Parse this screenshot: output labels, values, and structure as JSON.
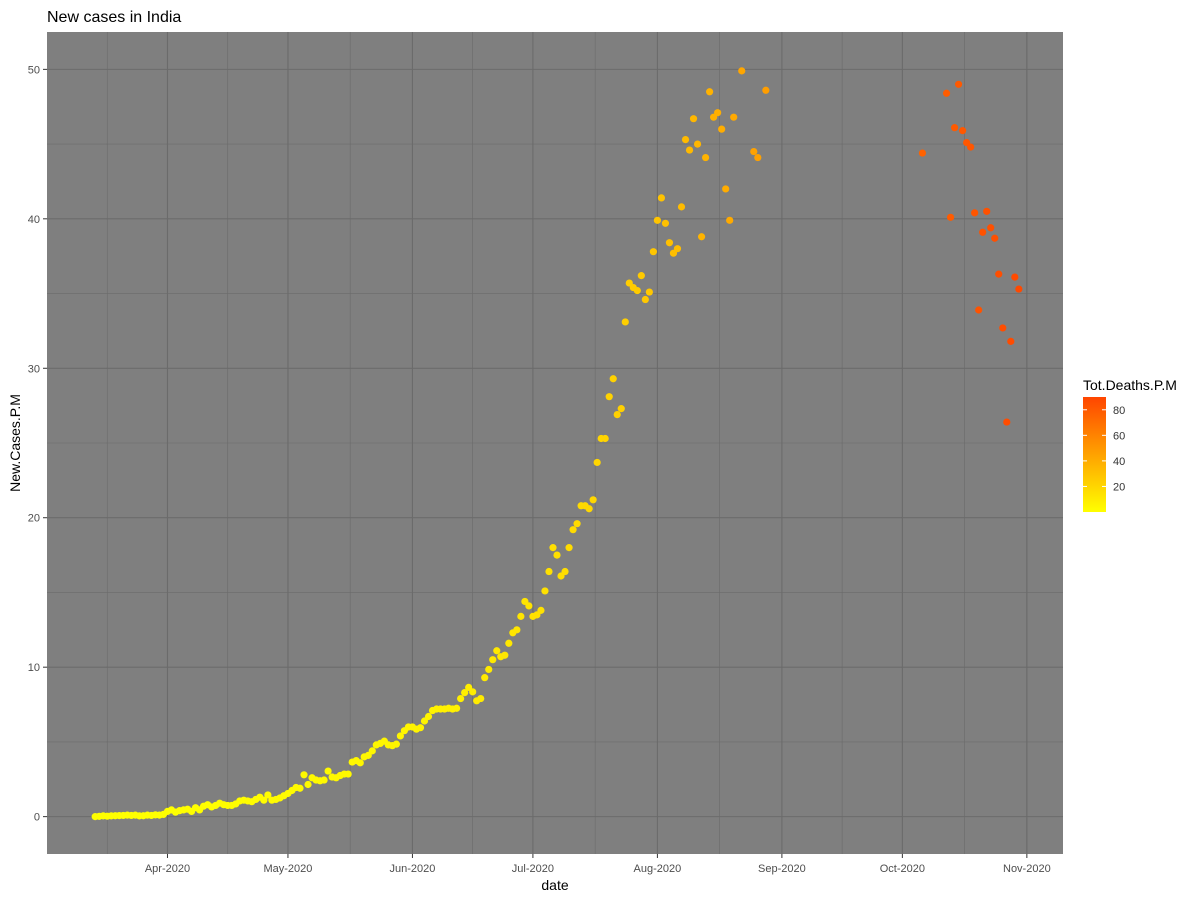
{
  "chart_data": {
    "type": "scatter",
    "title": "New cases in India",
    "xlabel": "date",
    "ylabel": "New.Cases.P.M",
    "x_ticks": [
      "Apr-2020",
      "May-2020",
      "Jun-2020",
      "Jul-2020",
      "Aug-2020",
      "Sep-2020",
      "Oct-2020",
      "Nov-2020"
    ],
    "x_tick_dates": [
      "2020-04-01",
      "2020-05-01",
      "2020-06-01",
      "2020-07-01",
      "2020-08-01",
      "2020-09-01",
      "2020-10-01",
      "2020-11-01"
    ],
    "y_ticks": [
      0,
      10,
      20,
      30,
      40,
      50
    ],
    "xlim": [
      "2020-03-02",
      "2020-11-10"
    ],
    "ylim": [
      -2.5,
      52.5
    ],
    "panel_background": "#7f7f7f",
    "grid": true,
    "legend": {
      "title": "Tot.Deaths.P.M",
      "position": "right",
      "ticks": [
        20,
        40,
        60,
        80
      ],
      "range": [
        0,
        90
      ],
      "low_color": "#ffff00",
      "high_color": "#ff4500"
    },
    "points": [
      {
        "date": "2020-03-14",
        "y": 0.0,
        "c": 0.01
      },
      {
        "date": "2020-03-15",
        "y": 0.02,
        "c": 0.01
      },
      {
        "date": "2020-03-16",
        "y": 0.05,
        "c": 0.01
      },
      {
        "date": "2020-03-17",
        "y": 0.03,
        "c": 0.01
      },
      {
        "date": "2020-03-18",
        "y": 0.05,
        "c": 0.01
      },
      {
        "date": "2020-03-19",
        "y": 0.06,
        "c": 0.02
      },
      {
        "date": "2020-03-20",
        "y": 0.07,
        "c": 0.02
      },
      {
        "date": "2020-03-21",
        "y": 0.08,
        "c": 0.02
      },
      {
        "date": "2020-03-22",
        "y": 0.1,
        "c": 0.03
      },
      {
        "date": "2020-03-23",
        "y": 0.08,
        "c": 0.03
      },
      {
        "date": "2020-03-24",
        "y": 0.1,
        "c": 0.04
      },
      {
        "date": "2020-03-25",
        "y": 0.05,
        "c": 0.05
      },
      {
        "date": "2020-03-26",
        "y": 0.06,
        "c": 0.06
      },
      {
        "date": "2020-03-27",
        "y": 0.1,
        "c": 0.07
      },
      {
        "date": "2020-03-28",
        "y": 0.08,
        "c": 0.08
      },
      {
        "date": "2020-03-29",
        "y": 0.12,
        "c": 0.09
      },
      {
        "date": "2020-03-30",
        "y": 0.1,
        "c": 0.1
      },
      {
        "date": "2020-03-31",
        "y": 0.15,
        "c": 0.12
      },
      {
        "date": "2020-04-01",
        "y": 0.35,
        "c": 0.15
      },
      {
        "date": "2020-04-02",
        "y": 0.45,
        "c": 0.18
      },
      {
        "date": "2020-04-03",
        "y": 0.3,
        "c": 0.2
      },
      {
        "date": "2020-04-04",
        "y": 0.4,
        "c": 0.25
      },
      {
        "date": "2020-04-05",
        "y": 0.45,
        "c": 0.3
      },
      {
        "date": "2020-04-06",
        "y": 0.5,
        "c": 0.35
      },
      {
        "date": "2020-04-07",
        "y": 0.35,
        "c": 0.4
      },
      {
        "date": "2020-04-08",
        "y": 0.6,
        "c": 0.45
      },
      {
        "date": "2020-04-09",
        "y": 0.45,
        "c": 0.5
      },
      {
        "date": "2020-04-10",
        "y": 0.7,
        "c": 0.55
      },
      {
        "date": "2020-04-11",
        "y": 0.8,
        "c": 0.6
      },
      {
        "date": "2020-04-12",
        "y": 0.65,
        "c": 0.65
      },
      {
        "date": "2020-04-13",
        "y": 0.75,
        "c": 0.7
      },
      {
        "date": "2020-04-14",
        "y": 0.9,
        "c": 0.8
      },
      {
        "date": "2020-04-15",
        "y": 0.8,
        "c": 0.85
      },
      {
        "date": "2020-04-16",
        "y": 0.75,
        "c": 0.9
      },
      {
        "date": "2020-04-17",
        "y": 0.75,
        "c": 1.0
      },
      {
        "date": "2020-04-18",
        "y": 0.85,
        "c": 1.05
      },
      {
        "date": "2020-04-19",
        "y": 1.05,
        "c": 1.1
      },
      {
        "date": "2020-04-20",
        "y": 1.1,
        "c": 1.2
      },
      {
        "date": "2020-04-21",
        "y": 1.05,
        "c": 1.3
      },
      {
        "date": "2020-04-22",
        "y": 1.0,
        "c": 1.35
      },
      {
        "date": "2020-04-23",
        "y": 1.15,
        "c": 1.4
      },
      {
        "date": "2020-04-24",
        "y": 1.3,
        "c": 1.5
      },
      {
        "date": "2020-04-25",
        "y": 1.1,
        "c": 1.55
      },
      {
        "date": "2020-04-26",
        "y": 1.45,
        "c": 1.6
      },
      {
        "date": "2020-04-27",
        "y": 1.1,
        "c": 1.7
      },
      {
        "date": "2020-04-28",
        "y": 1.15,
        "c": 1.8
      },
      {
        "date": "2020-04-29",
        "y": 1.25,
        "c": 1.85
      },
      {
        "date": "2020-04-30",
        "y": 1.4,
        "c": 1.95
      },
      {
        "date": "2020-05-01",
        "y": 1.55,
        "c": 2.0
      },
      {
        "date": "2020-05-02",
        "y": 1.75,
        "c": 2.1
      },
      {
        "date": "2020-05-03",
        "y": 1.95,
        "c": 2.2
      },
      {
        "date": "2020-05-04",
        "y": 1.9,
        "c": 2.3
      },
      {
        "date": "2020-05-05",
        "y": 2.8,
        "c": 2.4
      },
      {
        "date": "2020-05-06",
        "y": 2.15,
        "c": 2.5
      },
      {
        "date": "2020-05-07",
        "y": 2.6,
        "c": 2.6
      },
      {
        "date": "2020-05-08",
        "y": 2.45,
        "c": 2.7
      },
      {
        "date": "2020-05-09",
        "y": 2.4,
        "c": 2.8
      },
      {
        "date": "2020-05-10",
        "y": 2.45,
        "c": 2.9
      },
      {
        "date": "2020-05-11",
        "y": 3.05,
        "c": 3.0
      },
      {
        "date": "2020-05-12",
        "y": 2.65,
        "c": 3.1
      },
      {
        "date": "2020-05-13",
        "y": 2.6,
        "c": 3.2
      },
      {
        "date": "2020-05-14",
        "y": 2.75,
        "c": 3.3
      },
      {
        "date": "2020-05-15",
        "y": 2.85,
        "c": 3.4
      },
      {
        "date": "2020-05-16",
        "y": 2.85,
        "c": 3.5
      },
      {
        "date": "2020-05-17",
        "y": 3.65,
        "c": 3.6
      },
      {
        "date": "2020-05-18",
        "y": 3.75,
        "c": 3.7
      },
      {
        "date": "2020-05-19",
        "y": 3.6,
        "c": 3.8
      },
      {
        "date": "2020-05-20",
        "y": 4.0,
        "c": 3.9
      },
      {
        "date": "2020-05-21",
        "y": 4.1,
        "c": 4.0
      },
      {
        "date": "2020-05-22",
        "y": 4.4,
        "c": 4.1
      },
      {
        "date": "2020-05-23",
        "y": 4.8,
        "c": 4.2
      },
      {
        "date": "2020-05-24",
        "y": 4.9,
        "c": 4.3
      },
      {
        "date": "2020-05-25",
        "y": 5.05,
        "c": 4.4
      },
      {
        "date": "2020-05-26",
        "y": 4.8,
        "c": 4.5
      },
      {
        "date": "2020-05-27",
        "y": 4.75,
        "c": 4.6
      },
      {
        "date": "2020-05-28",
        "y": 4.85,
        "c": 4.8
      },
      {
        "date": "2020-05-29",
        "y": 5.4,
        "c": 4.9
      },
      {
        "date": "2020-05-30",
        "y": 5.75,
        "c": 5.0
      },
      {
        "date": "2020-05-31",
        "y": 6.0,
        "c": 5.2
      },
      {
        "date": "2020-06-01",
        "y": 6.0,
        "c": 5.3
      },
      {
        "date": "2020-06-02",
        "y": 5.85,
        "c": 5.5
      },
      {
        "date": "2020-06-03",
        "y": 5.95,
        "c": 5.7
      },
      {
        "date": "2020-06-04",
        "y": 6.4,
        "c": 5.9
      },
      {
        "date": "2020-06-05",
        "y": 6.7,
        "c": 6.0
      },
      {
        "date": "2020-06-06",
        "y": 7.1,
        "c": 6.2
      },
      {
        "date": "2020-06-07",
        "y": 7.2,
        "c": 6.4
      },
      {
        "date": "2020-06-08",
        "y": 7.2,
        "c": 6.6
      },
      {
        "date": "2020-06-09",
        "y": 7.2,
        "c": 6.8
      },
      {
        "date": "2020-06-10",
        "y": 7.25,
        "c": 7.0
      },
      {
        "date": "2020-06-11",
        "y": 7.2,
        "c": 7.2
      },
      {
        "date": "2020-06-12",
        "y": 7.25,
        "c": 7.5
      },
      {
        "date": "2020-06-13",
        "y": 7.9,
        "c": 7.8
      },
      {
        "date": "2020-06-14",
        "y": 8.3,
        "c": 8.0
      },
      {
        "date": "2020-06-15",
        "y": 8.65,
        "c": 8.3
      },
      {
        "date": "2020-06-16",
        "y": 8.35,
        "c": 8.6
      },
      {
        "date": "2020-06-17",
        "y": 7.75,
        "c": 9.5
      },
      {
        "date": "2020-06-18",
        "y": 7.9,
        "c": 9.8
      },
      {
        "date": "2020-06-19",
        "y": 9.3,
        "c": 10.0
      },
      {
        "date": "2020-06-20",
        "y": 9.85,
        "c": 10.3
      },
      {
        "date": "2020-06-21",
        "y": 10.5,
        "c": 10.6
      },
      {
        "date": "2020-06-22",
        "y": 11.1,
        "c": 10.9
      },
      {
        "date": "2020-06-23",
        "y": 10.7,
        "c": 11.2
      },
      {
        "date": "2020-06-24",
        "y": 10.8,
        "c": 11.5
      },
      {
        "date": "2020-06-25",
        "y": 11.6,
        "c": 11.8
      },
      {
        "date": "2020-06-26",
        "y": 12.3,
        "c": 12.1
      },
      {
        "date": "2020-06-27",
        "y": 12.5,
        "c": 12.4
      },
      {
        "date": "2020-06-28",
        "y": 13.4,
        "c": 12.7
      },
      {
        "date": "2020-06-29",
        "y": 14.4,
        "c": 13.0
      },
      {
        "date": "2020-06-30",
        "y": 14.1,
        "c": 13.3
      },
      {
        "date": "2020-07-01",
        "y": 13.4,
        "c": 13.6
      },
      {
        "date": "2020-07-02",
        "y": 13.5,
        "c": 14.0
      },
      {
        "date": "2020-07-03",
        "y": 13.8,
        "c": 14.3
      },
      {
        "date": "2020-07-04",
        "y": 15.1,
        "c": 14.6
      },
      {
        "date": "2020-07-05",
        "y": 16.4,
        "c": 14.9
      },
      {
        "date": "2020-07-06",
        "y": 18.0,
        "c": 15.3
      },
      {
        "date": "2020-07-07",
        "y": 17.5,
        "c": 15.7
      },
      {
        "date": "2020-07-08",
        "y": 16.1,
        "c": 16.1
      },
      {
        "date": "2020-07-09",
        "y": 16.4,
        "c": 16.5
      },
      {
        "date": "2020-07-10",
        "y": 18.0,
        "c": 16.9
      },
      {
        "date": "2020-07-11",
        "y": 19.2,
        "c": 17.3
      },
      {
        "date": "2020-07-12",
        "y": 19.6,
        "c": 17.7
      },
      {
        "date": "2020-07-13",
        "y": 20.8,
        "c": 18.1
      },
      {
        "date": "2020-07-14",
        "y": 20.8,
        "c": 18.5
      },
      {
        "date": "2020-07-15",
        "y": 20.6,
        "c": 18.9
      },
      {
        "date": "2020-07-16",
        "y": 21.2,
        "c": 19.3
      },
      {
        "date": "2020-07-17",
        "y": 23.7,
        "c": 19.7
      },
      {
        "date": "2020-07-18",
        "y": 25.3,
        "c": 20.2
      },
      {
        "date": "2020-07-19",
        "y": 25.3,
        "c": 20.7
      },
      {
        "date": "2020-07-20",
        "y": 28.1,
        "c": 21.2
      },
      {
        "date": "2020-07-21",
        "y": 29.3,
        "c": 21.7
      },
      {
        "date": "2020-07-22",
        "y": 26.9,
        "c": 22.2
      },
      {
        "date": "2020-07-23",
        "y": 27.3,
        "c": 22.8
      },
      {
        "date": "2020-07-24",
        "y": 33.1,
        "c": 23.4
      },
      {
        "date": "2020-07-25",
        "y": 35.7,
        "c": 24.0
      },
      {
        "date": "2020-07-26",
        "y": 35.4,
        "c": 24.6
      },
      {
        "date": "2020-07-27",
        "y": 35.2,
        "c": 25.2
      },
      {
        "date": "2020-07-28",
        "y": 36.2,
        "c": 25.8
      },
      {
        "date": "2020-07-29",
        "y": 34.6,
        "c": 26.4
      },
      {
        "date": "2020-07-30",
        "y": 35.1,
        "c": 27.0
      },
      {
        "date": "2020-07-31",
        "y": 37.8,
        "c": 27.7
      },
      {
        "date": "2020-08-01",
        "y": 39.9,
        "c": 28.4
      },
      {
        "date": "2020-08-02",
        "y": 41.4,
        "c": 29.1
      },
      {
        "date": "2020-08-03",
        "y": 39.7,
        "c": 29.8
      },
      {
        "date": "2020-08-04",
        "y": 38.4,
        "c": 30.5
      },
      {
        "date": "2020-08-05",
        "y": 37.7,
        "c": 31.2
      },
      {
        "date": "2020-08-06",
        "y": 38.0,
        "c": 31.9
      },
      {
        "date": "2020-08-07",
        "y": 40.8,
        "c": 32.6
      },
      {
        "date": "2020-08-08",
        "y": 45.3,
        "c": 33.3
      },
      {
        "date": "2020-08-09",
        "y": 44.6,
        "c": 34.0
      },
      {
        "date": "2020-08-10",
        "y": 46.7,
        "c": 34.7
      },
      {
        "date": "2020-08-11",
        "y": 45.0,
        "c": 35.4
      },
      {
        "date": "2020-08-12",
        "y": 38.8,
        "c": 36.1
      },
      {
        "date": "2020-08-13",
        "y": 44.1,
        "c": 36.8
      },
      {
        "date": "2020-08-14",
        "y": 48.5,
        "c": 37.5
      },
      {
        "date": "2020-08-15",
        "y": 46.8,
        "c": 38.2
      },
      {
        "date": "2020-08-16",
        "y": 47.1,
        "c": 38.9
      },
      {
        "date": "2020-08-17",
        "y": 46.0,
        "c": 39.6
      },
      {
        "date": "2020-08-18",
        "y": 42.0,
        "c": 40.3
      },
      {
        "date": "2020-08-19",
        "y": 39.9,
        "c": 41.0
      },
      {
        "date": "2020-08-20",
        "y": 46.8,
        "c": 41.7
      },
      {
        "date": "2020-08-22",
        "y": 49.9,
        "c": 43.0
      },
      {
        "date": "2020-08-25",
        "y": 44.5,
        "c": 45.0
      },
      {
        "date": "2020-08-26",
        "y": 44.1,
        "c": 45.6
      },
      {
        "date": "2020-08-28",
        "y": 48.6,
        "c": 47.0
      },
      {
        "date": "2020-10-06",
        "y": 44.4,
        "c": 76.0
      },
      {
        "date": "2020-10-12",
        "y": 48.4,
        "c": 79.0
      },
      {
        "date": "2020-10-13",
        "y": 40.1,
        "c": 79.5
      },
      {
        "date": "2020-10-14",
        "y": 46.1,
        "c": 80.0
      },
      {
        "date": "2020-10-15",
        "y": 49.0,
        "c": 80.5
      },
      {
        "date": "2020-10-16",
        "y": 45.9,
        "c": 81.0
      },
      {
        "date": "2020-10-17",
        "y": 45.1,
        "c": 81.5
      },
      {
        "date": "2020-10-18",
        "y": 44.8,
        "c": 82.0
      },
      {
        "date": "2020-10-19",
        "y": 40.4,
        "c": 82.5
      },
      {
        "date": "2020-10-20",
        "y": 33.9,
        "c": 83.0
      },
      {
        "date": "2020-10-21",
        "y": 39.1,
        "c": 83.5
      },
      {
        "date": "2020-10-22",
        "y": 40.5,
        "c": 84.0
      },
      {
        "date": "2020-10-23",
        "y": 39.4,
        "c": 84.5
      },
      {
        "date": "2020-10-24",
        "y": 38.7,
        "c": 85.0
      },
      {
        "date": "2020-10-25",
        "y": 36.3,
        "c": 85.5
      },
      {
        "date": "2020-10-26",
        "y": 32.7,
        "c": 86.0
      },
      {
        "date": "2020-10-27",
        "y": 26.4,
        "c": 86.5
      },
      {
        "date": "2020-10-28",
        "y": 31.8,
        "c": 87.0
      },
      {
        "date": "2020-10-29",
        "y": 36.1,
        "c": 87.5
      },
      {
        "date": "2020-10-30",
        "y": 35.3,
        "c": 88.0
      }
    ]
  }
}
